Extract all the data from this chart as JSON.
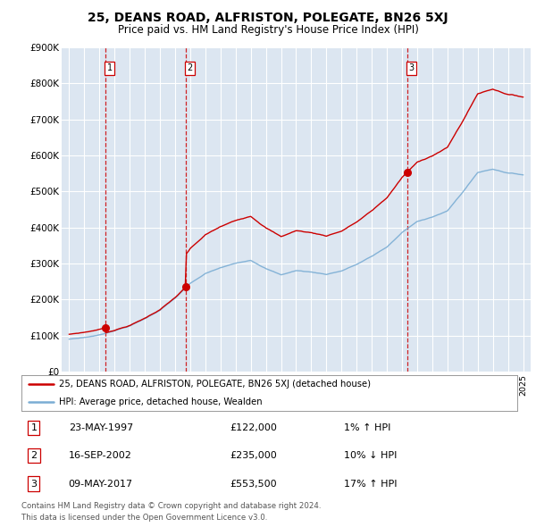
{
  "title": "25, DEANS ROAD, ALFRISTON, POLEGATE, BN26 5XJ",
  "subtitle": "Price paid vs. HM Land Registry's House Price Index (HPI)",
  "background_color": "#dce6f1",
  "transactions": [
    {
      "label": "1",
      "year": 1997.38,
      "price": 122000,
      "date": "23-MAY-1997",
      "pct": "1%",
      "dir": "↑"
    },
    {
      "label": "2",
      "year": 2002.71,
      "price": 235000,
      "date": "16-SEP-2002",
      "pct": "10%",
      "dir": "↓"
    },
    {
      "label": "3",
      "year": 2017.35,
      "price": 553500,
      "date": "09-MAY-2017",
      "pct": "17%",
      "dir": "↑"
    }
  ],
  "ylim": [
    0,
    900000
  ],
  "xlim": [
    1994.5,
    2025.5
  ],
  "yticks": [
    0,
    100000,
    200000,
    300000,
    400000,
    500000,
    600000,
    700000,
    800000,
    900000
  ],
  "ytick_labels": [
    "£0",
    "£100K",
    "£200K",
    "£300K",
    "£400K",
    "£500K",
    "£600K",
    "£700K",
    "£800K",
    "£900K"
  ],
  "legend_line1": "25, DEANS ROAD, ALFRISTON, POLEGATE, BN26 5XJ (detached house)",
  "legend_line2": "HPI: Average price, detached house, Wealden",
  "footer1": "Contains HM Land Registry data © Crown copyright and database right 2024.",
  "footer2": "This data is licensed under the Open Government Licence v3.0.",
  "red_color": "#cc0000",
  "blue_color": "#7aadd4",
  "dashed_color": "#cc0000",
  "hpi_base": [
    90000,
    95000,
    102000,
    115000,
    128000,
    148000,
    172000,
    205000,
    245000,
    272000,
    288000,
    300000,
    310000,
    288000,
    270000,
    282000,
    278000,
    272000,
    282000,
    300000,
    322000,
    348000,
    388000,
    418000,
    432000,
    448000,
    500000,
    555000,
    565000,
    555000,
    550000
  ]
}
